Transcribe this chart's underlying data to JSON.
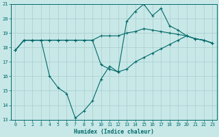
{
  "xlabel": "Humidex (Indice chaleur)",
  "xlim": [
    -0.5,
    23.5
  ],
  "ylim": [
    13,
    21
  ],
  "yticks": [
    13,
    14,
    15,
    16,
    17,
    18,
    19,
    20,
    21
  ],
  "xticks": [
    0,
    1,
    2,
    3,
    4,
    5,
    6,
    7,
    8,
    9,
    10,
    11,
    12,
    13,
    14,
    15,
    16,
    17,
    18,
    19,
    20,
    21,
    22,
    23
  ],
  "bg_color": "#c8e8e8",
  "line_color": "#006868",
  "grid_color": "#a8cccc",
  "line1_x": [
    0,
    1,
    2,
    3,
    4,
    5,
    6,
    7,
    8,
    9,
    10,
    11,
    12,
    13,
    14,
    15,
    16,
    17,
    18,
    19,
    20,
    21,
    22,
    23
  ],
  "line1_y": [
    17.8,
    18.5,
    18.5,
    18.5,
    18.5,
    18.5,
    18.5,
    18.5,
    18.5,
    18.5,
    18.8,
    18.8,
    18.8,
    19.0,
    19.1,
    19.3,
    19.2,
    19.1,
    19.0,
    18.9,
    18.8,
    18.6,
    18.5,
    18.3
  ],
  "line2_x": [
    0,
    1,
    2,
    3,
    4,
    5,
    6,
    7,
    8,
    9,
    10,
    11,
    12,
    13,
    14,
    15,
    16,
    17,
    18,
    19,
    20,
    21,
    22,
    23
  ],
  "line2_y": [
    17.8,
    18.5,
    18.5,
    18.5,
    16.0,
    15.2,
    14.8,
    13.1,
    13.6,
    14.3,
    15.8,
    16.7,
    16.3,
    19.8,
    20.5,
    21.0,
    20.2,
    20.7,
    19.5,
    19.2,
    18.8,
    18.6,
    18.5,
    18.3
  ],
  "line3_x": [
    0,
    1,
    2,
    3,
    4,
    5,
    6,
    7,
    8,
    9,
    10,
    11,
    12,
    13,
    14,
    15,
    16,
    17,
    18,
    19,
    20,
    21,
    22,
    23
  ],
  "line3_y": [
    17.8,
    18.5,
    18.5,
    18.5,
    18.5,
    18.5,
    18.5,
    18.5,
    18.5,
    18.5,
    16.8,
    16.5,
    16.3,
    16.5,
    17.0,
    17.3,
    17.6,
    17.9,
    18.2,
    18.5,
    18.8,
    18.6,
    18.5,
    18.3
  ]
}
